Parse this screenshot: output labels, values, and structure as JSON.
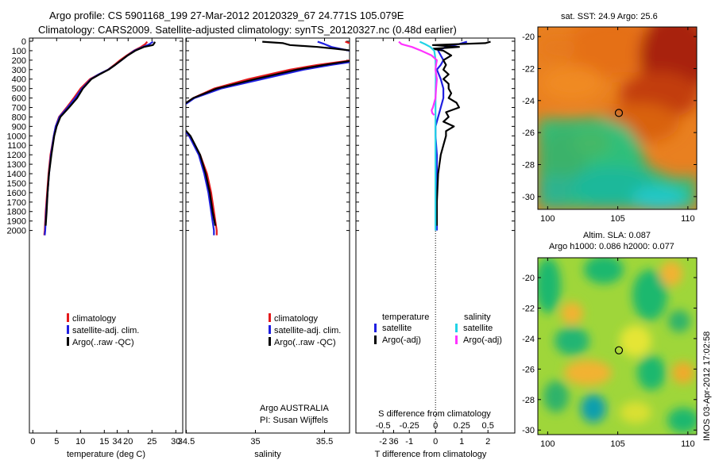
{
  "header": {
    "line1": "Argo profile: CS 5901168_199 27-Mar-2012 20120329_67 24.771S 105.079E",
    "line2": "Climatology: CARS2009. Satellite-adjusted climatology: synTS_20120327.nc (0.48d earlier)"
  },
  "maps": {
    "sst_title": "sat. SST: 24.9 Argo: 25.6",
    "sla_title1": "Altim. SLA: 0.087",
    "sla_title2": "Argo h1000: 0.086 h2000: 0.077",
    "xticks": [
      "100",
      "105",
      "110"
    ],
    "yticks": [
      "-20",
      "-22",
      "-24",
      "-26",
      "-28",
      "-30"
    ],
    "float_lon": 105.079,
    "float_lat": -24.771,
    "credit": "IMOS 03-Apr-2012 17:02:58"
  },
  "colors": {
    "climatology": "#e41a1c",
    "satellite": "#1f1fe0",
    "argo": "#000000",
    "sal_satellite": "#22d3e6",
    "sal_argo": "#ff33ff"
  },
  "chart_data": [
    {
      "type": "line",
      "xlabel": "temperature (deg C)",
      "ylabel": "",
      "xlim": [
        -2,
        31
      ],
      "ylim": [
        2100,
        0
      ],
      "xticks": [
        "0",
        "5",
        "10",
        "15",
        "20",
        "25",
        "30"
      ],
      "yticks": [
        "0",
        "100",
        "200",
        "300",
        "400",
        "500",
        "600",
        "700",
        "800",
        "900",
        "1000",
        "1100",
        "1200",
        "1300",
        "1400",
        "1500",
        "1600",
        "1700",
        "1800",
        "1900",
        "2000"
      ],
      "legend": [
        "climatology",
        "satellite-adj. clim.",
        "Argo(..raw -QC)"
      ],
      "series": [
        {
          "name": "climatology",
          "color": "#e41a1c",
          "depth": [
            5,
            30,
            60,
            100,
            150,
            200,
            250,
            300,
            350,
            400,
            500,
            600,
            700,
            800,
            900,
            1000,
            1200,
            1400,
            1600,
            1800,
            2000,
            2050
          ],
          "values": [
            24.0,
            23.6,
            22.7,
            21.2,
            19.7,
            18.3,
            17.1,
            15.8,
            13.8,
            12.0,
            10.0,
            8.6,
            7.1,
            5.5,
            4.8,
            4.4,
            3.7,
            3.3,
            3.0,
            2.7,
            2.5,
            2.4
          ]
        },
        {
          "name": "satellite-adj. clim.",
          "color": "#1f1fe0",
          "depth": [
            5,
            30,
            60,
            100,
            150,
            200,
            250,
            300,
            350,
            400,
            500,
            600,
            700,
            800,
            900,
            1000,
            1200,
            1400,
            1600,
            1800,
            2000,
            2050
          ],
          "values": [
            25.2,
            24.5,
            23.1,
            21.3,
            19.9,
            18.6,
            17.3,
            15.8,
            13.8,
            12.2,
            10.3,
            8.9,
            7.3,
            5.6,
            4.8,
            4.4,
            3.8,
            3.4,
            3.1,
            2.8,
            2.6,
            2.5
          ]
        },
        {
          "name": "Argo(..raw -QC)",
          "color": "#000000",
          "depth": [
            5,
            20,
            40,
            60,
            100,
            150,
            200,
            250,
            300,
            350,
            400,
            500,
            600,
            700,
            800,
            900,
            1000,
            1200,
            1400,
            1600,
            1800,
            1950
          ],
          "values": [
            25.6,
            25.5,
            25.2,
            23.3,
            21.5,
            19.9,
            18.6,
            17.3,
            15.9,
            14.0,
            12.3,
            10.5,
            9.3,
            7.6,
            5.8,
            5.0,
            4.5,
            3.9,
            3.4,
            3.1,
            2.9,
            2.7
          ]
        }
      ]
    },
    {
      "type": "line",
      "xlabel": "salinity",
      "ylabel": "",
      "xlim": [
        33.6,
        36.2
      ],
      "ylim": [
        2100,
        0
      ],
      "xticks": [
        "34",
        "34.5",
        "35",
        "35.5",
        "36"
      ],
      "legend": [
        "climatology",
        "satellite-adj. clim.",
        "Argo(..raw -QC)"
      ],
      "annotation": [
        "Argo AUSTRALIA",
        "PI: Susan Wijffels"
      ],
      "series": [
        {
          "name": "climatology",
          "color": "#e41a1c",
          "depth": [
            5,
            30,
            60,
            100,
            150,
            200,
            250,
            300,
            400,
            500,
            600,
            700,
            800,
            900,
            1000,
            1200,
            1400,
            1600,
            1800,
            2000,
            2050
          ],
          "values": [
            35.65,
            35.7,
            35.74,
            35.8,
            35.82,
            35.7,
            35.45,
            35.25,
            34.95,
            34.7,
            34.55,
            34.45,
            34.42,
            34.46,
            34.52,
            34.6,
            34.65,
            34.68,
            34.7,
            34.72,
            34.72
          ]
        },
        {
          "name": "satellite-adj. clim.",
          "color": "#1f1fe0",
          "depth": [
            5,
            30,
            60,
            100,
            150,
            200,
            250,
            300,
            400,
            500,
            600,
            700,
            800,
            900,
            1000,
            1200,
            1400,
            1600,
            1800,
            2000,
            2050
          ],
          "values": [
            35.45,
            35.5,
            35.55,
            35.68,
            35.82,
            35.78,
            35.55,
            35.35,
            35.05,
            34.75,
            34.56,
            34.46,
            34.43,
            34.46,
            34.52,
            34.59,
            34.63,
            34.66,
            34.68,
            34.7,
            34.7
          ]
        },
        {
          "name": "Argo(..raw -QC)",
          "color": "#000000",
          "depth": [
            5,
            20,
            40,
            60,
            80,
            100,
            150,
            200,
            250,
            300,
            400,
            500,
            600,
            700,
            800,
            900,
            1000,
            1200,
            1400,
            1600,
            1800,
            1950
          ],
          "values": [
            35.05,
            35.2,
            35.25,
            35.45,
            35.58,
            35.7,
            35.82,
            35.72,
            35.5,
            35.3,
            35.0,
            34.72,
            34.55,
            34.45,
            34.44,
            34.47,
            34.53,
            34.6,
            34.64,
            34.67,
            34.69,
            34.71
          ]
        }
      ]
    },
    {
      "type": "line",
      "xlabel": "T difference from climatology",
      "xlabel_top": "S difference from climatology",
      "ylabel": "",
      "xlim": [
        -2.6,
        2.6
      ],
      "ylim": [
        2100,
        0
      ],
      "xticks": [
        "-2",
        "-1",
        "0",
        "1",
        "2"
      ],
      "xticks_top": [
        "-0.5",
        "-0.25",
        "0",
        "0.25",
        "0.5"
      ],
      "legend_temperature": {
        "title": "temperature",
        "entries": [
          "satellite",
          "Argo(-adj)"
        ]
      },
      "legend_salinity": {
        "title": "salinity",
        "entries": [
          "satellite",
          "Argo(-adj)"
        ]
      },
      "series": [
        {
          "name": "temperature satellite",
          "color": "#1f1fe0",
          "depth": [
            5,
            30,
            60,
            100,
            150,
            200,
            250,
            300,
            400,
            500,
            600,
            700,
            800,
            900,
            1000,
            1200,
            1500,
            2000
          ],
          "values": [
            1.2,
            0.9,
            0.4,
            0.1,
            0.2,
            0.3,
            0.2,
            0.05,
            0.2,
            0.3,
            0.3,
            0.2,
            0.1,
            0.0,
            0.0,
            0.05,
            0.05,
            0.05
          ]
        },
        {
          "name": "temperature Argo(-adj)",
          "color": "#000000",
          "depth": [
            5,
            20,
            40,
            60,
            80,
            100,
            150,
            200,
            250,
            300,
            350,
            400,
            450,
            500,
            550,
            600,
            650,
            700,
            750,
            800,
            850,
            900,
            950,
            1000,
            1100,
            1200,
            1400,
            1700,
            1950
          ],
          "values": [
            2.1,
            1.9,
            -0.1,
            0.9,
            -0.1,
            0.3,
            0.6,
            0.3,
            0.4,
            0.3,
            0.5,
            0.3,
            0.5,
            0.5,
            0.6,
            0.5,
            0.8,
            0.9,
            0.4,
            0.5,
            0.3,
            0.7,
            0.4,
            0.4,
            0.3,
            0.2,
            0.1,
            0.05,
            0.05
          ]
        },
        {
          "name": "salinity satellite",
          "color": "#22d3e6",
          "depth": [
            5,
            30,
            60,
            100,
            150,
            200,
            300,
            400,
            600,
            800,
            1000,
            1500,
            2000
          ],
          "values": [
            -0.6,
            -0.4,
            -0.2,
            -0.05,
            -0.02,
            0.0,
            0.01,
            0.01,
            0.0,
            0.0,
            0.0,
            0.0,
            0.0
          ]
        },
        {
          "name": "salinity Argo(-adj)",
          "color": "#ff33ff",
          "depth": [
            5,
            30,
            60,
            100,
            150,
            200,
            250,
            300,
            400,
            500,
            600,
            700,
            730,
            760,
            780
          ],
          "values": [
            -1.4,
            -1.3,
            -0.9,
            -0.55,
            -0.15,
            0.05,
            0.02,
            0.0,
            0.05,
            0.02,
            0.0,
            -0.1,
            -0.15,
            -0.12,
            -0.05
          ]
        }
      ]
    }
  ]
}
